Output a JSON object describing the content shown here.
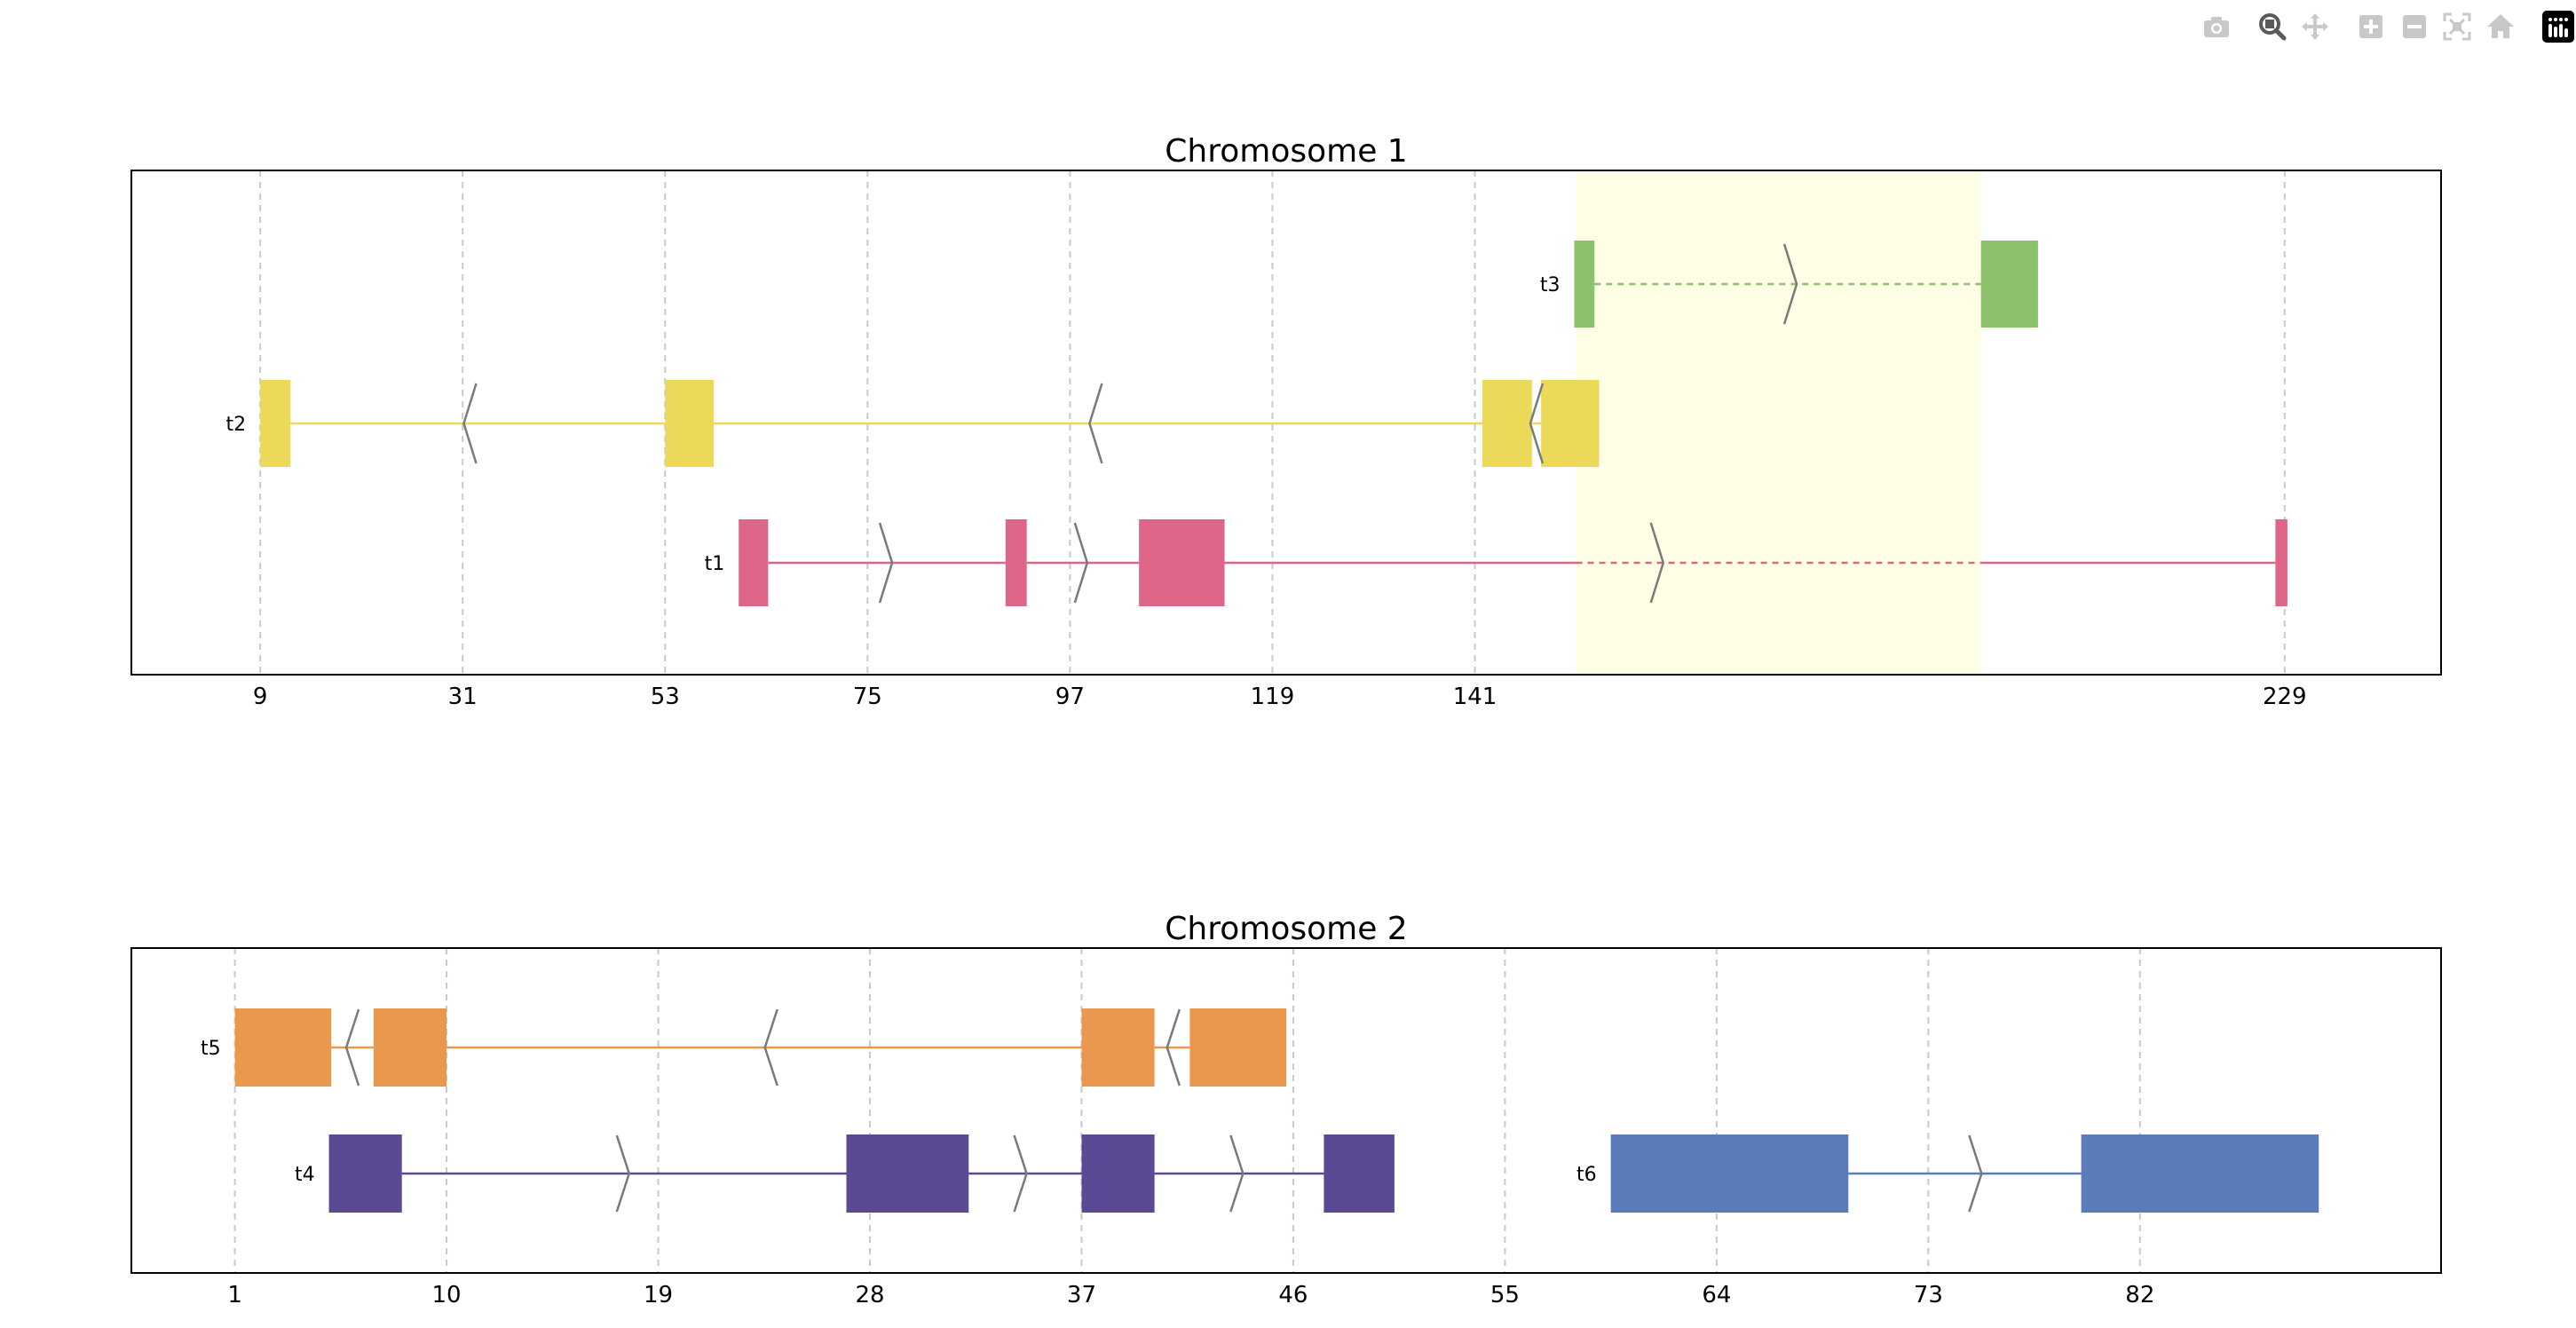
{
  "modebar": {
    "buttons": [
      {
        "name": "camera-icon",
        "title": "Download plot as a png",
        "active": false
      },
      {
        "name": "zoom-icon",
        "title": "Zoom",
        "active": true
      },
      {
        "name": "pan-icon",
        "title": "Pan",
        "active": false
      },
      {
        "name": "zoom-in-icon",
        "title": "Zoom in",
        "active": false
      },
      {
        "name": "zoom-out-icon",
        "title": "Zoom out",
        "active": false
      },
      {
        "name": "autoscale-icon",
        "title": "Autoscale",
        "active": false
      },
      {
        "name": "reset-axes-icon",
        "title": "Reset axes",
        "active": false
      },
      {
        "name": "plotly-logo-icon",
        "title": "Produced with Plotly",
        "active": false
      }
    ]
  },
  "chart_data": [
    {
      "type": "gene-track",
      "title": "Chromosome 1",
      "xlim": [
        -5,
        246
      ],
      "xticks": [
        9,
        31,
        53,
        75,
        97,
        119,
        141,
        229
      ],
      "grid": "vertical-dashed",
      "highlight": {
        "start": 152,
        "end": 196,
        "color": "#ffffe6"
      },
      "tracks": [
        {
          "label": "t3",
          "color": "#8bc26b",
          "strand": "+",
          "row": 0,
          "exons": [
            [
              151.8,
              154
            ],
            [
              196,
              202.2
            ]
          ],
          "introns": [
            [
              154,
              196
            ]
          ],
          "dashed": [
            [
              154,
              196
            ]
          ],
          "arrows": [
            175.3
          ]
        },
        {
          "label": "t2",
          "color": "#ecd95a",
          "strand": "-",
          "row": 1,
          "exons": [
            [
              9,
              12.3
            ],
            [
              53,
              58.3
            ],
            [
              141.8,
              147.2
            ],
            [
              148.2,
              154.5
            ]
          ],
          "introns": [
            [
              12.3,
              53
            ],
            [
              58.3,
              141.8
            ],
            [
              147.2,
              148.2
            ]
          ],
          "dashed": [],
          "arrows": [
            31.8,
            99.8,
            147.7
          ]
        },
        {
          "label": "t1",
          "color": "#df6588",
          "strand": "+",
          "row": 2,
          "exons": [
            [
              61,
              64.2
            ],
            [
              90,
              92.3
            ],
            [
              104.5,
              113.8
            ],
            [
              228,
              229.3
            ]
          ],
          "introns": [
            [
              64.2,
              90
            ],
            [
              92.3,
              104.5
            ],
            [
              113.8,
              228
            ]
          ],
          "dashed": [
            [
              152,
              196
            ]
          ],
          "arrows": [
            77,
            98.2,
            160.8
          ]
        }
      ]
    },
    {
      "type": "gene-track",
      "title": "Chromosome 2",
      "xlim": [
        -3.4,
        94.8
      ],
      "xticks": [
        1,
        10,
        19,
        28,
        37,
        46,
        55,
        64,
        73,
        82
      ],
      "grid": "vertical-dashed",
      "tracks": [
        {
          "label": "t5",
          "color": "#e9984e",
          "strand": "-",
          "row": 0,
          "exons": [
            [
              1,
              5.1
            ],
            [
              6.9,
              10
            ],
            [
              37,
              40.1
            ],
            [
              41.6,
              45.7
            ]
          ],
          "introns": [
            [
              5.1,
              6.9
            ],
            [
              10,
              37
            ],
            [
              40.1,
              41.6
            ]
          ],
          "arrows": [
            6,
            23.8,
            40.9
          ]
        },
        {
          "label": "t4",
          "color": "#5b4995",
          "strand": "+",
          "row": 1,
          "exons": [
            [
              5,
              8.1
            ],
            [
              27,
              32.2
            ],
            [
              37,
              40.1
            ],
            [
              47.3,
              50.3
            ]
          ],
          "introns": [
            [
              8.1,
              27
            ],
            [
              32.2,
              37
            ],
            [
              40.1,
              47.3
            ]
          ],
          "arrows": [
            17.5,
            34.4,
            43.6
          ]
        },
        {
          "label": "t6",
          "color": "#5b7cba",
          "strand": "+",
          "row": 1,
          "exons": [
            [
              59.5,
              69.6
            ],
            [
              79.5,
              89.6
            ]
          ],
          "introns": [
            [
              69.6,
              79.5
            ]
          ],
          "arrows": [
            75
          ]
        }
      ]
    }
  ]
}
